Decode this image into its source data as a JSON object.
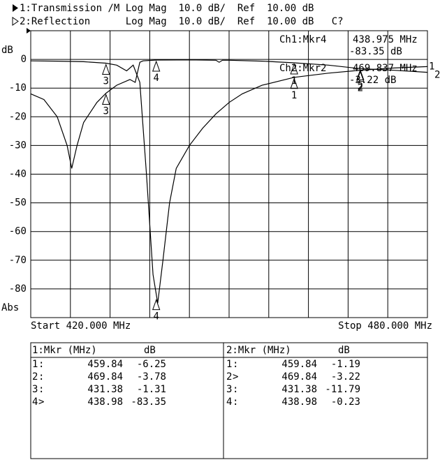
{
  "header": {
    "line1": "1:Transmission /M Log Mag  10.0 dB/  Ref  10.00 dB",
    "line2": "2:Reflection      Log Mag  10.0 dB/  Ref  10.00 dB   C?"
  },
  "chart_data": {
    "type": "line",
    "y_label": "dB",
    "y_bottom_label": "Abs",
    "start": "Start 420.000 MHz",
    "stop": "Stop 480.000 MHz",
    "xlim": [
      420,
      480
    ],
    "xticks": [
      420,
      426,
      432,
      438,
      444,
      450,
      456,
      462,
      468,
      474,
      480
    ],
    "ylim": [
      -90,
      10
    ],
    "yticks": [
      0,
      -10,
      -20,
      -30,
      -40,
      -50,
      -60,
      -70,
      -80
    ],
    "grid": true,
    "readouts": [
      [
        "Ch1:Mkr4",
        "438.975 MHz",
        "-83.35 dB"
      ],
      [
        "Ch2:Mkr2",
        "469.837 MHz",
        "-3.22 dB"
      ]
    ],
    "series": [
      {
        "name": "1",
        "color": "#000000",
        "x": [
          420,
          424,
          428,
          431.38,
          433,
          434.5,
          435.5,
          436.5,
          437.5,
          438.5,
          439.2,
          440,
          441,
          442,
          444,
          446,
          448,
          450,
          452,
          455,
          459.84,
          465,
          469.84,
          475,
          480
        ],
        "values": [
          -0.5,
          -0.6,
          -0.8,
          -1.31,
          -2,
          -4,
          -2,
          -8,
          -40,
          -75,
          -85,
          -70,
          -50,
          -38,
          -30,
          -24,
          -19,
          -15,
          -12,
          -9,
          -6.25,
          -4.8,
          -3.78,
          -3,
          -2.5
        ]
      },
      {
        "name": "2",
        "color": "#000000",
        "x": [
          420,
          422,
          424,
          425.5,
          426.2,
          427,
          428,
          430,
          431.38,
          433,
          435,
          435.8,
          436.5,
          437,
          438.98,
          445,
          448,
          448.5,
          449,
          450,
          455,
          459.84,
          465,
          469.84,
          475,
          480
        ],
        "values": [
          -12,
          -14,
          -20,
          -30,
          -38,
          -30,
          -22,
          -15,
          -11.79,
          -9,
          -7,
          -8,
          -1,
          -0.5,
          -0.23,
          -0.2,
          -0.3,
          -1,
          -0.3,
          -0.3,
          -0.6,
          -1.19,
          -2,
          -3.22,
          -3.8,
          -4.5
        ]
      }
    ]
  },
  "tables": [
    {
      "header": [
        "1:Mkr (MHz)",
        "dB"
      ],
      "rows": [
        {
          "marker": "1",
          "flag": ":",
          "freq": 459.84,
          "db": -6.25
        },
        {
          "marker": "2",
          "flag": ":",
          "freq": 469.84,
          "db": -3.78
        },
        {
          "marker": "3",
          "flag": ":",
          "freq": 431.38,
          "db": -1.31
        },
        {
          "marker": "4",
          "flag": ">",
          "freq": 438.98,
          "db": -83.35
        }
      ]
    },
    {
      "header": [
        "2:Mkr (MHz)",
        "dB"
      ],
      "rows": [
        {
          "marker": "1",
          "flag": ":",
          "freq": 459.84,
          "db": -1.19
        },
        {
          "marker": "2",
          "flag": ">",
          "freq": 469.84,
          "db": -3.22
        },
        {
          "marker": "3",
          "flag": ":",
          "freq": 431.38,
          "db": -11.79
        },
        {
          "marker": "4",
          "flag": ":",
          "freq": 438.98,
          "db": -0.23
        }
      ]
    }
  ]
}
